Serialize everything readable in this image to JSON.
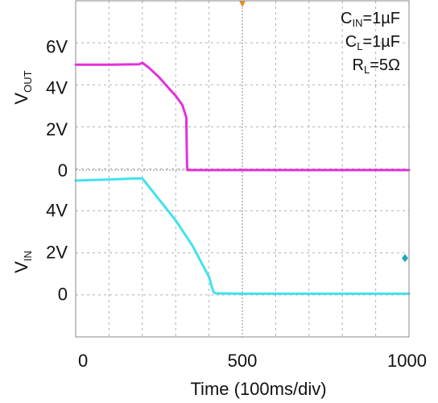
{
  "chart_data": {
    "type": "line",
    "xlabel": "Time (100ms/div)",
    "x_ticks": [
      "0",
      "500",
      "1000"
    ],
    "xlim": [
      0,
      1000
    ],
    "grid": true,
    "colors": {
      "vout": "#e020d8",
      "vin": "#30e0ee",
      "trigger_marker": "#f08a1c",
      "level_marker": "#1ea7b7",
      "background": "#ffffff",
      "grid": "#b0b0b0"
    },
    "annotations": [
      {
        "main": "C",
        "sub": "IN",
        "tail": "=1µF"
      },
      {
        "main": "C",
        "sub": "L",
        "tail": "=1µF"
      },
      {
        "main": "R",
        "sub": "L",
        "tail": "=5Ω"
      }
    ],
    "panels": [
      {
        "name": "vout",
        "ylabel": {
          "main": "V",
          "sub": "OUT"
        },
        "ylim": [
          0,
          8
        ],
        "y_ticks": [
          {
            "value": 6,
            "label": "6V"
          },
          {
            "value": 4,
            "label": "4V"
          },
          {
            "value": 2,
            "label": "2V"
          },
          {
            "value": 0,
            "label": "0"
          }
        ],
        "x": [
          0,
          100,
          190,
          200,
          220,
          250,
          280,
          300,
          320,
          332,
          334,
          336,
          400,
          500,
          600,
          700,
          800,
          900,
          1000
        ],
        "y": [
          5.1,
          5.1,
          5.12,
          5.2,
          4.95,
          4.5,
          3.95,
          3.6,
          3.15,
          2.55,
          0.2,
          0.0,
          0.0,
          0.0,
          0.0,
          0.0,
          0.0,
          0.0,
          0.0
        ]
      },
      {
        "name": "vin",
        "ylabel": {
          "main": "V",
          "sub": "IN"
        },
        "ylim": [
          -2.1,
          5.9
        ],
        "y_ticks": [
          {
            "value": 4,
            "label": "4V"
          },
          {
            "value": 2,
            "label": "2V"
          },
          {
            "value": 0,
            "label": "0"
          }
        ],
        "x": [
          0,
          100,
          180,
          200,
          220,
          250,
          300,
          350,
          400,
          410,
          415,
          420,
          500,
          600,
          700,
          800,
          900,
          1000
        ],
        "y": [
          5.4,
          5.45,
          5.5,
          5.5,
          5.1,
          4.5,
          3.5,
          2.3,
          0.8,
          0.25,
          0.05,
          0.02,
          0.0,
          0.0,
          0.0,
          0.0,
          0.0,
          0.0
        ]
      }
    ]
  }
}
